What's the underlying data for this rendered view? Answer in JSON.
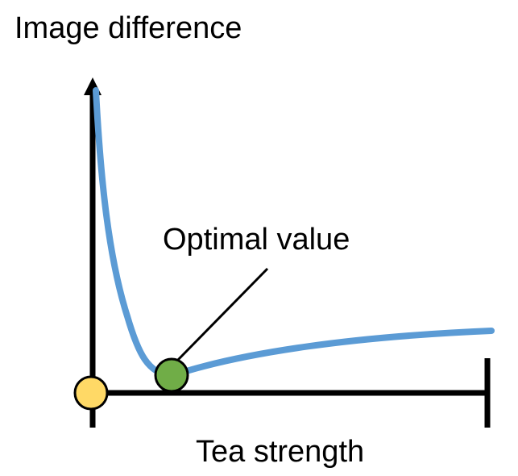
{
  "labels": {
    "y_axis": "Image difference",
    "x_axis": "Tea strength",
    "annotation": "Optimal value"
  },
  "colors": {
    "axis": "#000000",
    "curve": "#5b9bd5",
    "optimal_marker": "#70ad47",
    "origin_marker": "#ffd966",
    "marker_outline": "#000000"
  }
}
